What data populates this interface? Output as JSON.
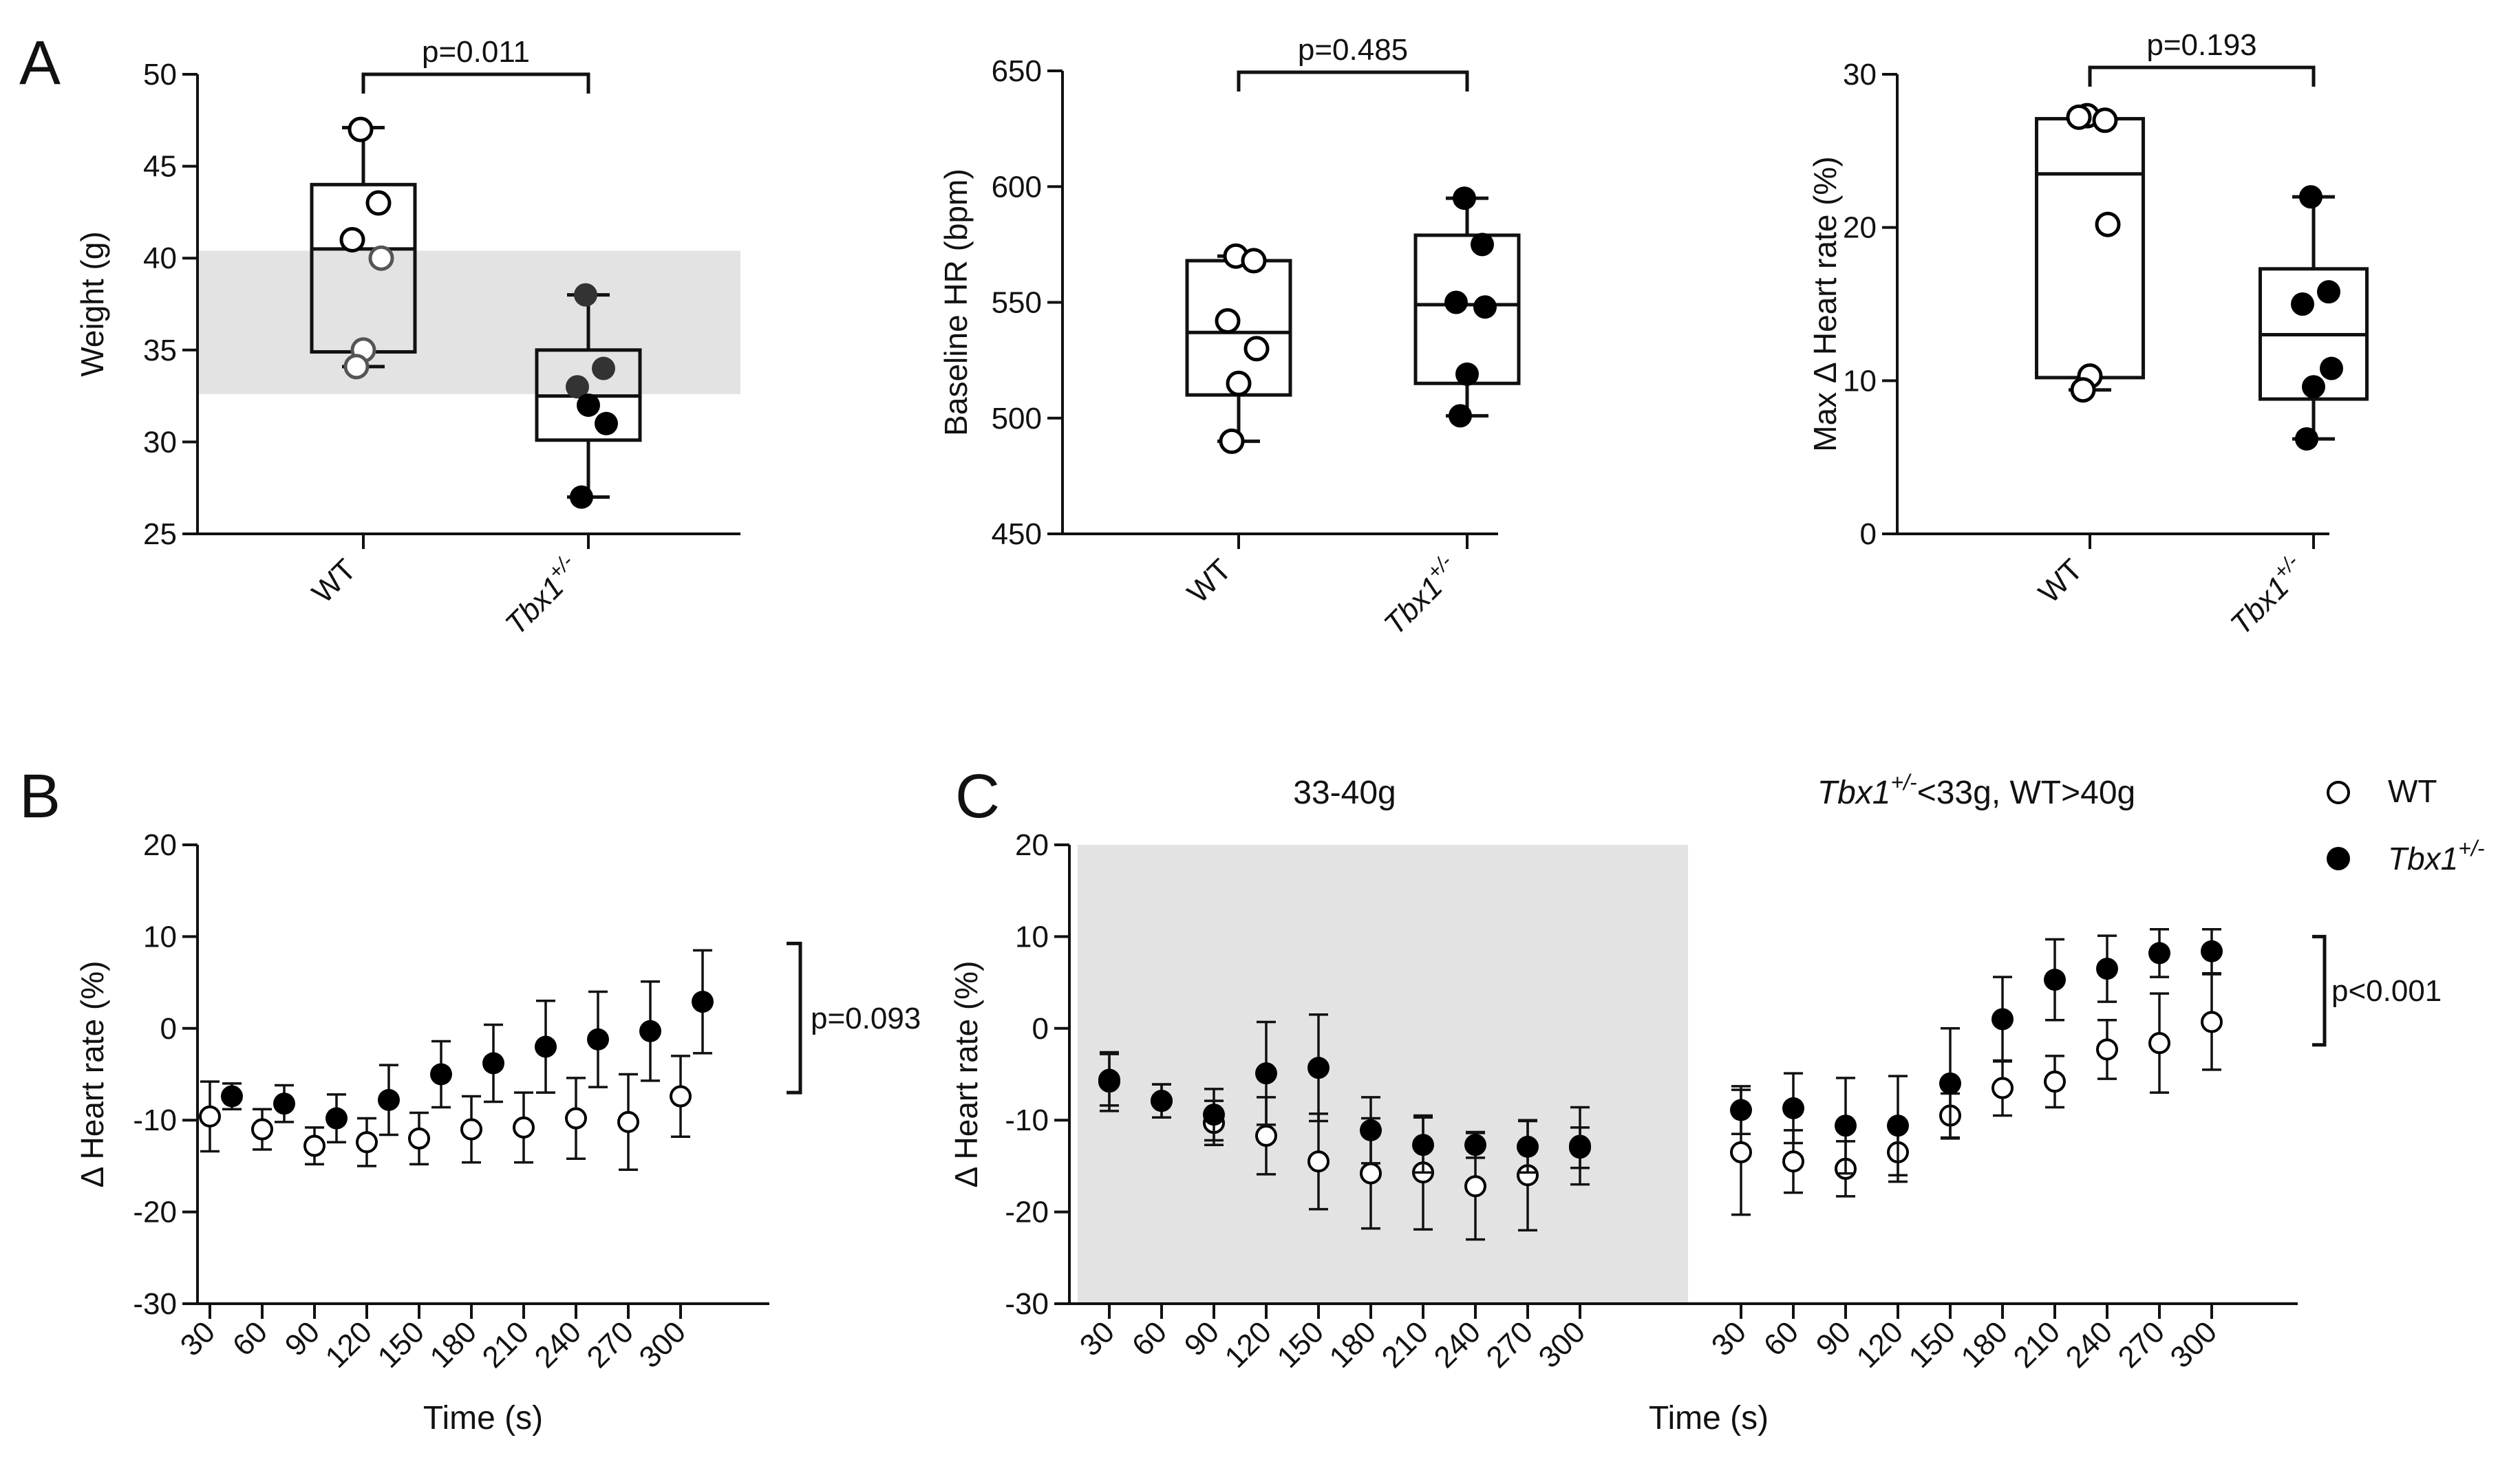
{
  "figure": {
    "panel_labels": [
      "A",
      "B",
      "C"
    ],
    "legend": {
      "items": [
        {
          "name": "WT",
          "label_main": "WT",
          "label_sup": "",
          "marker": "open-circle"
        },
        {
          "name": "Tbx1+/-",
          "label_main": "Tbx1",
          "label_sup": "+/-",
          "marker": "filled-circle"
        }
      ]
    },
    "colors": {
      "axis": "#111111",
      "filled": "#000000",
      "open_fill": "#ffffff",
      "shade": "#e3e3e3",
      "dark_gray": "#333333"
    }
  },
  "chart_data": [
    {
      "id": "A1",
      "type": "box",
      "panel": "A",
      "ylabel": "Weight (g)",
      "ylim": [
        25,
        50
      ],
      "yticks": [
        25,
        30,
        35,
        40,
        45,
        50
      ],
      "categories": [
        {
          "main": "WT",
          "sup": ""
        },
        {
          "main": "Tbx1",
          "sup": "+/-"
        }
      ],
      "shaded_band": [
        32.6,
        40.4
      ],
      "significance": "p=0.011",
      "groups": [
        {
          "name": "WT",
          "marker": "open",
          "min": 34.1,
          "q1": 34.9,
          "median": 40.5,
          "q3": 44.0,
          "max": 47.1,
          "points": [
            47.0,
            43.0,
            41.0,
            40.0,
            35.0,
            34.1
          ],
          "point_gray": [
            false,
            false,
            false,
            true,
            true,
            true
          ]
        },
        {
          "name": "Tbx1+/-",
          "marker": "filled",
          "min": 27.0,
          "q1": 30.1,
          "median": 32.5,
          "q3": 35.0,
          "max": 38.0,
          "points": [
            38.0,
            34.0,
            33.0,
            31.0,
            32.0,
            27.0
          ],
          "point_gray": [
            true,
            true,
            true,
            false,
            false,
            false
          ]
        }
      ]
    },
    {
      "id": "A2",
      "type": "box",
      "panel": "A",
      "ylabel": "Baseline HR (bpm)",
      "ylim": [
        450,
        650
      ],
      "yticks": [
        450,
        500,
        550,
        600,
        650
      ],
      "categories": [
        {
          "main": "WT",
          "sup": ""
        },
        {
          "main": "Tbx1",
          "sup": "+/-"
        }
      ],
      "significance": "p=0.485",
      "groups": [
        {
          "name": "WT",
          "marker": "open",
          "min": 490,
          "q1": 510,
          "median": 537,
          "q3": 568,
          "max": 570,
          "points": [
            570,
            568,
            542,
            530,
            515,
            490
          ]
        },
        {
          "name": "Tbx1+/-",
          "marker": "filled",
          "min": 501,
          "q1": 515,
          "median": 549,
          "q3": 579,
          "max": 595,
          "points": [
            595,
            575,
            550,
            548,
            519,
            501
          ]
        }
      ]
    },
    {
      "id": "A3",
      "type": "box",
      "panel": "A",
      "ylabel": "Max Δ Heart rate (%)",
      "ylim": [
        0,
        30
      ],
      "yticks": [
        0,
        10,
        20,
        30
      ],
      "categories": [
        {
          "main": "WT",
          "sup": ""
        },
        {
          "main": "Tbx1",
          "sup": "+/-"
        }
      ],
      "significance": "p=0.193",
      "groups": [
        {
          "name": "WT",
          "marker": "open",
          "min": 9.4,
          "q1": 10.2,
          "median": 23.5,
          "q3": 27.1,
          "max": 27.3,
          "points": [
            27.3,
            27.0,
            27.2,
            20.2,
            10.3,
            9.4
          ]
        },
        {
          "name": "Tbx1+/-",
          "marker": "filled",
          "min": 6.2,
          "q1": 8.8,
          "median": 13.0,
          "q3": 17.3,
          "max": 22.0,
          "points": [
            22.0,
            15.8,
            15.0,
            10.8,
            9.6,
            6.2
          ]
        }
      ]
    },
    {
      "id": "B",
      "type": "scatter-errorbar",
      "panel": "B",
      "ylabel": "Δ Heart rate (%)",
      "xlabel": "Time (s)",
      "ylim": [
        -30,
        20
      ],
      "yticks": [
        -30,
        -20,
        -10,
        0,
        10,
        20
      ],
      "x": [
        30,
        60,
        90,
        120,
        150,
        180,
        210,
        240,
        270,
        300
      ],
      "significance": "p=0.093",
      "series": [
        {
          "name": "WT",
          "marker": "open",
          "values": [
            -9.6,
            -11.0,
            -12.8,
            -12.4,
            -12.0,
            -11.0,
            -10.8,
            -9.8,
            -10.2,
            -7.4
          ],
          "errors": [
            3.8,
            2.2,
            2.0,
            2.6,
            2.8,
            3.6,
            3.8,
            4.4,
            5.2,
            4.4
          ]
        },
        {
          "name": "Tbx1+/-",
          "marker": "filled",
          "values": [
            -7.4,
            -8.2,
            -9.8,
            -7.8,
            -5.0,
            -3.8,
            -2.0,
            -1.2,
            -0.3,
            2.9
          ],
          "errors": [
            1.4,
            2.0,
            2.6,
            3.8,
            3.6,
            4.2,
            5.0,
            5.2,
            5.4,
            5.6
          ]
        }
      ]
    },
    {
      "id": "C",
      "type": "scatter-errorbar",
      "panel": "C",
      "ylabel": "Δ Heart rate (%)",
      "xlabel": "Time (s)",
      "ylim": [
        -30,
        20
      ],
      "yticks": [
        -30,
        -20,
        -10,
        0,
        10,
        20
      ],
      "x": [
        30,
        60,
        90,
        120,
        150,
        180,
        210,
        240,
        270,
        300
      ],
      "significance": "p<0.001",
      "subsets": [
        {
          "title_main": "33-40g",
          "title_sup": "",
          "title_rest": "",
          "shaded": true,
          "series": [
            {
              "name": "WT",
              "marker": "open",
              "values": [
                -5.8,
                -7.9,
                -10.3,
                -11.7,
                -14.5,
                -15.8,
                -15.7,
                -17.2,
                -16.0,
                -12.8
              ],
              "errors": [
                3.2,
                1.8,
                2.4,
                4.2,
                5.2,
                6.0,
                6.2,
                5.8,
                6.0,
                4.2
              ]
            },
            {
              "name": "Tbx1+/-",
              "marker": "filled",
              "values": [
                -5.6,
                -7.9,
                -9.4,
                -4.9,
                -4.3,
                -11.1,
                -12.7,
                -12.7,
                -12.9,
                -13.0
              ],
              "errors": [
                2.8,
                1.8,
                2.8,
                5.6,
                5.8,
                3.6,
                3.0,
                1.4,
                2.8,
                2.2
              ]
            }
          ]
        },
        {
          "title_main": "Tbx1",
          "title_sup": "+/-",
          "title_rest": "<33g, WT>40g",
          "shaded": false,
          "series": [
            {
              "name": "WT",
              "marker": "open",
              "values": [
                -13.5,
                -14.5,
                -15.3,
                -13.5,
                -9.5,
                -6.5,
                -5.8,
                -2.3,
                -1.6,
                0.7
              ],
              "errors": [
                6.8,
                3.4,
                3.0,
                3.2,
                2.4,
                3.0,
                2.8,
                3.2,
                5.4,
                5.2
              ]
            },
            {
              "name": "Tbx1+/-",
              "marker": "filled",
              "values": [
                -8.9,
                -8.7,
                -10.6,
                -10.6,
                -6.0,
                1.0,
                5.3,
                6.5,
                8.2,
                8.4
              ],
              "errors": [
                2.6,
                3.8,
                5.2,
                5.4,
                6.0,
                4.6,
                4.4,
                3.6,
                2.6,
                2.4
              ]
            }
          ]
        }
      ]
    }
  ]
}
